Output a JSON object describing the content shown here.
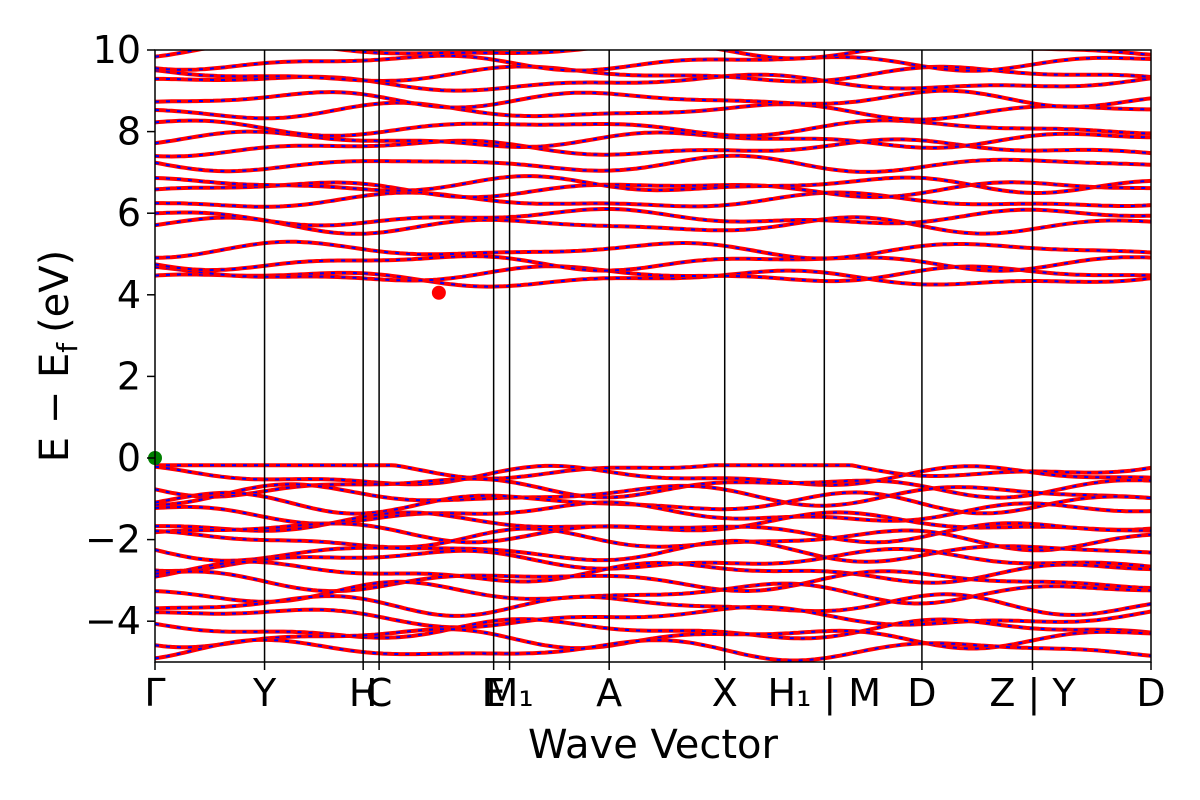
{
  "chart_data": {
    "type": "line",
    "title": "",
    "xlabel": "Wave Vector",
    "ylabel": "E − E",
    "ylabel_sub": "f",
    "ylabel_unit": "(eV)",
    "ylim": [
      -5,
      10
    ],
    "yticks": [
      -4,
      -2,
      0,
      2,
      4,
      6,
      8,
      10
    ],
    "xlim": [
      0,
      10
    ],
    "grid": false,
    "legend": "none",
    "kpath": [
      {
        "x": 0.0,
        "label": "Γ",
        "line": false
      },
      {
        "x": 1.1,
        "label": "Y",
        "line": true
      },
      {
        "x": 2.09,
        "label": "H",
        "line": true
      },
      {
        "x": 2.25,
        "label": "C",
        "line": true
      },
      {
        "x": 3.4,
        "label": "E",
        "line": true
      },
      {
        "x": 3.56,
        "label": "M₁",
        "line": true
      },
      {
        "x": 4.56,
        "label": "A",
        "line": true
      },
      {
        "x": 5.72,
        "label": "X",
        "line": true
      },
      {
        "x": 6.72,
        "label": "H₁ | M",
        "line": true
      },
      {
        "x": 7.7,
        "label": "D",
        "line": true
      },
      {
        "x": 8.81,
        "label": "Z | Y",
        "line": true
      },
      {
        "x": 10.0,
        "label": "D",
        "line": false
      }
    ],
    "colors": {
      "band": "#ff0000",
      "overlay": "#0000ff",
      "axis": "#000000",
      "vbm_marker": "#008000",
      "cbm_marker": "#ff0000"
    },
    "conduction_base": [
      4.4,
      4.5,
      4.8,
      5.1,
      5.7,
      5.9,
      6.3,
      6.6,
      6.7,
      7.2,
      7.6,
      7.8,
      8.1,
      8.5,
      8.8,
      9.2,
      9.4,
      9.7,
      10.0
    ],
    "valence_base": [
      -0.25,
      -0.45,
      -0.7,
      -0.9,
      -1.1,
      -1.35,
      -1.6,
      -1.8,
      -2.0,
      -2.3,
      -2.5,
      -2.8,
      -3.0,
      -3.3,
      -3.6,
      -3.9,
      -4.2,
      -4.4,
      -4.7
    ],
    "markers": [
      {
        "name": "VBM",
        "x": 0.0,
        "y": 0.0
      },
      {
        "name": "CBM",
        "x": 2.85,
        "y": 4.05
      }
    ]
  }
}
